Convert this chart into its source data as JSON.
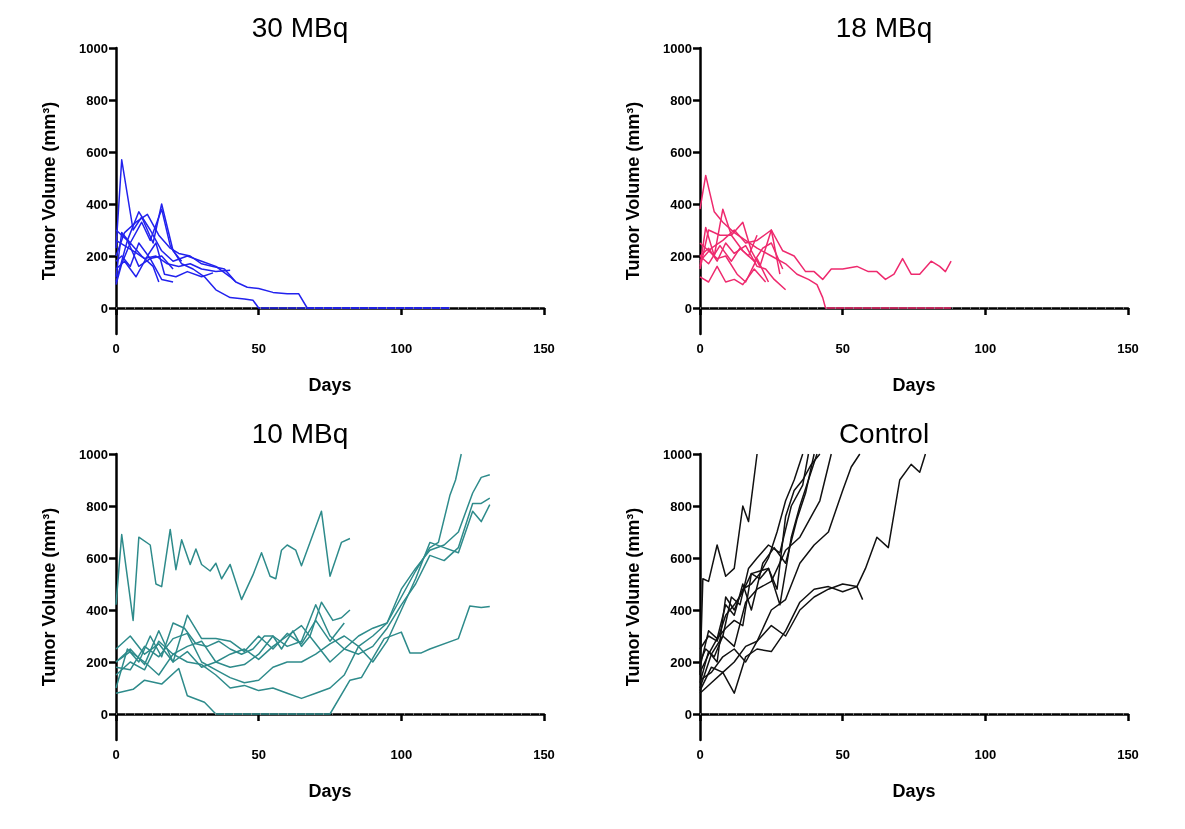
{
  "chart_data": [
    {
      "type": "line",
      "title": "30 MBq",
      "xlabel": "Days",
      "ylabel": "Tumor Volume (mm³)",
      "xlim": [
        0,
        150
      ],
      "xticks": [
        0,
        50,
        100,
        150
      ],
      "ylim": [
        -100,
        1000
      ],
      "yticks": [
        0,
        200,
        400,
        600,
        800,
        1000
      ],
      "grid": false,
      "marker": "none",
      "ref_lines": [
        {
          "axis": "y",
          "value": 0,
          "color": "#999999",
          "line_style": "dotted"
        }
      ],
      "series": [
        {
          "color": "#2222ee",
          "x": [
            0,
            2,
            6,
            9,
            13,
            16,
            20,
            23
          ],
          "values": [
            230,
            570,
            300,
            350,
            250,
            400,
            220,
            180
          ]
        },
        {
          "color": "#2222ee",
          "x": [
            0,
            2,
            5,
            9,
            12,
            16,
            19,
            23,
            27,
            31,
            35,
            40,
            45,
            48,
            50,
            117
          ],
          "values": [
            120,
            290,
            250,
            330,
            260,
            380,
            240,
            170,
            150,
            120,
            70,
            40,
            35,
            30,
            0,
            0
          ]
        },
        {
          "color": "#2222ee",
          "x": [
            0,
            3,
            7,
            11,
            15,
            19,
            22,
            26,
            30,
            34,
            38,
            42,
            46,
            50,
            55,
            60,
            64,
            67,
            117
          ],
          "values": [
            200,
            290,
            330,
            360,
            280,
            230,
            210,
            200,
            170,
            160,
            150,
            100,
            80,
            75,
            60,
            55,
            55,
            0,
            0
          ]
        },
        {
          "color": "#2222ee",
          "x": [
            0,
            4,
            8,
            12,
            16,
            20,
            25,
            30,
            35,
            40,
            42
          ],
          "values": [
            100,
            260,
            370,
            300,
            220,
            180,
            200,
            180,
            160,
            120,
            100
          ]
        },
        {
          "color": "#2222ee",
          "x": [
            0,
            3,
            7,
            11,
            14,
            17,
            21,
            25,
            30,
            34
          ],
          "values": [
            150,
            180,
            120,
            200,
            250,
            130,
            120,
            140,
            120,
            135
          ]
        },
        {
          "color": "#2222ee",
          "x": [
            0,
            2,
            5,
            9,
            13,
            15
          ],
          "values": [
            90,
            170,
            250,
            200,
            160,
            100
          ]
        },
        {
          "color": "#2222ee",
          "x": [
            0,
            3,
            6,
            10,
            14,
            18,
            22,
            26,
            30,
            35,
            40
          ],
          "values": [
            260,
            240,
            220,
            190,
            200,
            170,
            160,
            170,
            150,
            140,
            145
          ]
        },
        {
          "color": "#2222ee",
          "x": [
            0,
            2,
            5,
            8,
            12,
            16,
            20
          ],
          "values": [
            180,
            200,
            160,
            250,
            190,
            200,
            150
          ]
        },
        {
          "color": "#2222ee",
          "x": [
            0,
            4,
            8,
            12,
            16,
            20
          ],
          "values": [
            300,
            260,
            160,
            190,
            110,
            100
          ]
        }
      ]
    },
    {
      "type": "line",
      "title": "18 MBq",
      "xlabel": "Days",
      "ylabel": "Tumor Volume (mm³)",
      "xlim": [
        0,
        150
      ],
      "xticks": [
        0,
        50,
        100,
        150
      ],
      "ylim": [
        -100,
        1000
      ],
      "yticks": [
        0,
        200,
        400,
        600,
        800,
        1000
      ],
      "grid": false,
      "marker": "none",
      "ref_lines": [
        {
          "axis": "y",
          "value": 0,
          "color": "#999999",
          "line_style": "dotted"
        }
      ],
      "series": [
        {
          "color": "#ee2a6e",
          "x": [
            0,
            2,
            5,
            8,
            12,
            16,
            20,
            25,
            30,
            34,
            38,
            41,
            43,
            44,
            88
          ],
          "values": [
            380,
            510,
            370,
            330,
            290,
            260,
            230,
            200,
            170,
            130,
            110,
            90,
            40,
            0,
            0
          ]
        },
        {
          "color": "#ee2a6e",
          "x": [
            0,
            4,
            8,
            12,
            16,
            20,
            25,
            29,
            33,
            37,
            40,
            43,
            46,
            50,
            55,
            59,
            62,
            65,
            68,
            71,
            74,
            77,
            81,
            84,
            86,
            88
          ],
          "values": [
            180,
            230,
            260,
            300,
            250,
            260,
            300,
            220,
            200,
            140,
            140,
            110,
            150,
            150,
            160,
            140,
            140,
            110,
            130,
            190,
            130,
            130,
            180,
            160,
            140,
            180
          ]
        },
        {
          "color": "#ee2a6e",
          "x": [
            0,
            3,
            6,
            9,
            12,
            16,
            20,
            23,
            26,
            30
          ],
          "values": [
            200,
            230,
            180,
            250,
            210,
            240,
            160,
            150,
            110,
            70
          ]
        },
        {
          "color": "#ee2a6e",
          "x": [
            0,
            3,
            7,
            11,
            15,
            19,
            22,
            25,
            29
          ],
          "values": [
            150,
            300,
            280,
            280,
            220,
            180,
            230,
            250,
            150
          ]
        },
        {
          "color": "#ee2a6e",
          "x": [
            0,
            2,
            5,
            8,
            11,
            15,
            18,
            21,
            25,
            28
          ],
          "values": [
            160,
            310,
            200,
            380,
            280,
            330,
            220,
            160,
            300,
            130
          ]
        },
        {
          "color": "#ee2a6e",
          "x": [
            0,
            3,
            6,
            9,
            12,
            15,
            19,
            23
          ],
          "values": [
            120,
            100,
            160,
            100,
            110,
            90,
            150,
            100
          ]
        },
        {
          "color": "#ee2a6e",
          "x": [
            0,
            3,
            7,
            11,
            14,
            17,
            20
          ],
          "values": [
            200,
            170,
            240,
            180,
            230,
            200,
            280
          ]
        },
        {
          "color": "#ee2a6e",
          "x": [
            0,
            3,
            6,
            9,
            13,
            16,
            20,
            24
          ],
          "values": [
            250,
            220,
            190,
            200,
            130,
            100,
            190,
            100
          ]
        }
      ]
    },
    {
      "type": "line",
      "title": "10 MBq",
      "xlabel": "Days",
      "ylabel": "Tumor Volume (mm³)",
      "xlim": [
        0,
        150
      ],
      "xticks": [
        0,
        50,
        100,
        150
      ],
      "ylim": [
        -100,
        1000
      ],
      "yticks": [
        0,
        200,
        400,
        600,
        800,
        1000
      ],
      "grid": false,
      "marker": "none",
      "ref_lines": [
        {
          "axis": "y",
          "value": 0,
          "color": "#999999",
          "line_style": "dotted"
        }
      ],
      "series": [
        {
          "color": "#2e8b8b",
          "x": [
            0,
            2,
            6,
            8,
            12,
            14,
            16,
            19,
            21,
            23,
            26,
            28,
            30,
            33,
            35,
            37,
            40,
            44,
            48,
            51,
            54,
            56,
            58,
            60,
            63,
            65,
            72,
            75,
            79,
            82
          ],
          "values": [
            420,
            690,
            360,
            680,
            650,
            500,
            490,
            710,
            555,
            670,
            575,
            635,
            575,
            550,
            580,
            520,
            575,
            440,
            535,
            620,
            530,
            520,
            630,
            650,
            630,
            570,
            780,
            530,
            660,
            675
          ]
        },
        {
          "color": "#2e8b8b",
          "x": [
            0,
            6,
            10,
            16,
            22,
            25,
            31,
            35,
            75,
            82,
            86,
            94,
            100,
            103,
            107,
            110,
            120,
            124,
            128,
            131
          ],
          "values": [
            80,
            95,
            130,
            115,
            175,
            70,
            45,
            0,
            0,
            130,
            140,
            290,
            315,
            235,
            235,
            250,
            290,
            415,
            410,
            413
          ]
        },
        {
          "color": "#2e8b8b",
          "x": [
            0,
            5,
            10,
            15,
            20,
            25,
            30,
            35,
            40,
            45,
            50,
            55,
            60,
            65,
            70,
            75,
            80,
            85,
            90,
            95,
            100,
            105,
            110,
            113,
            117,
            119,
            121
          ],
          "values": [
            150,
            200,
            170,
            280,
            230,
            200,
            190,
            150,
            100,
            110,
            90,
            100,
            80,
            60,
            80,
            100,
            150,
            260,
            300,
            350,
            450,
            550,
            640,
            660,
            840,
            900,
            1000
          ]
        },
        {
          "color": "#2e8b8b",
          "x": [
            0,
            5,
            10,
            15,
            20,
            25,
            30,
            35,
            40,
            45,
            50,
            55,
            60,
            65,
            70,
            75,
            80,
            85,
            90,
            95,
            100,
            105,
            110,
            115,
            120,
            125,
            128,
            131
          ],
          "values": [
            250,
            300,
            230,
            270,
            200,
            240,
            180,
            200,
            230,
            250,
            210,
            260,
            300,
            340,
            270,
            200,
            250,
            300,
            330,
            350,
            480,
            560,
            630,
            650,
            700,
            850,
            910,
            920
          ]
        },
        {
          "color": "#2e8b8b",
          "x": [
            0,
            5,
            10,
            15,
            20,
            25,
            30,
            35,
            40,
            45,
            50,
            55,
            60,
            65,
            70,
            75,
            80,
            85,
            90,
            95,
            100,
            105,
            110,
            115,
            120,
            125,
            128,
            131
          ],
          "values": [
            200,
            240,
            200,
            150,
            230,
            260,
            280,
            200,
            180,
            190,
            230,
            300,
            260,
            280,
            420,
            300,
            250,
            230,
            260,
            330,
            420,
            500,
            610,
            590,
            640,
            810,
            810,
            830
          ]
        },
        {
          "color": "#2e8b8b",
          "x": [
            0,
            5,
            10,
            15,
            20,
            25,
            30,
            35,
            40,
            45,
            50,
            55,
            60,
            65,
            70,
            75,
            80,
            85,
            90,
            95,
            100,
            105,
            110,
            115,
            120,
            125,
            128,
            131
          ],
          "values": [
            180,
            170,
            260,
            220,
            290,
            310,
            200,
            170,
            140,
            120,
            130,
            180,
            200,
            200,
            230,
            270,
            300,
            260,
            200,
            280,
            400,
            520,
            660,
            640,
            620,
            780,
            740,
            805
          ]
        },
        {
          "color": "#2e8b8b",
          "x": [
            0,
            4,
            8,
            12,
            16,
            20,
            24,
            28,
            32,
            36,
            40,
            44,
            48,
            52,
            55,
            58,
            62,
            65,
            68,
            72,
            76,
            79,
            82
          ],
          "values": [
            100,
            250,
            200,
            300,
            220,
            350,
            330,
            270,
            260,
            280,
            250,
            230,
            250,
            300,
            300,
            250,
            320,
            260,
            300,
            430,
            360,
            370,
            400
          ]
        },
        {
          "color": "#2e8b8b",
          "x": [
            0,
            5,
            10,
            15,
            20,
            25,
            30,
            35,
            40,
            45,
            50,
            55,
            60,
            65,
            70,
            75,
            80
          ],
          "values": [
            200,
            250,
            190,
            320,
            200,
            380,
            290,
            290,
            280,
            240,
            300,
            250,
            310,
            270,
            360,
            280,
            350
          ]
        }
      ]
    },
    {
      "type": "line",
      "title": "Control",
      "xlabel": "Days",
      "ylabel": "Tumor Volume (mm³)",
      "xlim": [
        0,
        150
      ],
      "xticks": [
        0,
        50,
        100,
        150
      ],
      "ylim": [
        -100,
        1000
      ],
      "yticks": [
        0,
        200,
        400,
        600,
        800,
        1000
      ],
      "grid": false,
      "marker": "none",
      "ref_lines": [
        {
          "axis": "y",
          "value": 0,
          "color": "#999999",
          "line_style": "dotted"
        }
      ],
      "series": [
        {
          "color": "#111111",
          "x": [
            0,
            1,
            3,
            6,
            9,
            12,
            15,
            17,
            20
          ],
          "values": [
            150,
            520,
            510,
            650,
            530,
            560,
            800,
            740,
            1000
          ]
        },
        {
          "color": "#111111",
          "x": [
            0,
            3,
            6,
            9,
            12,
            15,
            18,
            21,
            24,
            27,
            30,
            33,
            36
          ],
          "values": [
            120,
            240,
            200,
            450,
            400,
            480,
            500,
            540,
            600,
            700,
            820,
            900,
            1000
          ]
        },
        {
          "color": "#111111",
          "x": [
            0,
            2,
            5,
            8,
            11,
            14,
            17,
            20,
            24,
            28,
            32,
            36,
            38
          ],
          "values": [
            200,
            250,
            220,
            300,
            450,
            420,
            560,
            600,
            650,
            620,
            800,
            880,
            1000
          ]
        },
        {
          "color": "#111111",
          "x": [
            0,
            3,
            6,
            9,
            12,
            15,
            18,
            22,
            26,
            30,
            34,
            37,
            40
          ],
          "values": [
            180,
            320,
            290,
            420,
            380,
            500,
            400,
            580,
            640,
            580,
            750,
            850,
            1000
          ]
        },
        {
          "color": "#111111",
          "x": [
            0,
            4,
            8,
            12,
            16,
            20,
            25,
            30,
            35,
            40,
            42,
            46
          ],
          "values": [
            100,
            230,
            300,
            260,
            430,
            480,
            510,
            630,
            680,
            780,
            820,
            1000
          ]
        },
        {
          "color": "#111111",
          "x": [
            0,
            4,
            8,
            12,
            16,
            20,
            25,
            30,
            35,
            40,
            45,
            50,
            53,
            56
          ],
          "values": [
            90,
            180,
            160,
            200,
            260,
            280,
            400,
            440,
            580,
            650,
            700,
            860,
            950,
            1000
          ]
        },
        {
          "color": "#111111",
          "x": [
            0,
            4,
            8,
            12,
            16,
            20,
            25,
            30,
            35,
            40,
            45,
            50,
            55,
            58,
            62,
            66,
            70,
            74,
            77,
            79
          ],
          "values": [
            130,
            160,
            220,
            250,
            200,
            280,
            340,
            300,
            400,
            450,
            480,
            500,
            490,
            560,
            680,
            640,
            900,
            960,
            930,
            1000
          ]
        },
        {
          "color": "#111111",
          "x": [
            0,
            4,
            8,
            12,
            16,
            20,
            25,
            30,
            35,
            40,
            45,
            50,
            55,
            57
          ],
          "values": [
            80,
            120,
            160,
            80,
            220,
            250,
            240,
            320,
            430,
            480,
            490,
            470,
            490,
            440
          ]
        },
        {
          "color": "#111111",
          "x": [
            0,
            3,
            6,
            9,
            12,
            15,
            18,
            21,
            24,
            27,
            30,
            33,
            36,
            39,
            42
          ],
          "values": [
            250,
            300,
            280,
            380,
            420,
            470,
            540,
            550,
            560,
            480,
            760,
            860,
            900,
            960,
            1000
          ]
        },
        {
          "color": "#111111",
          "x": [
            0,
            3,
            6,
            9,
            12,
            15,
            18,
            21,
            24,
            28,
            32,
            35,
            38,
            41
          ],
          "values": [
            160,
            230,
            290,
            330,
            360,
            340,
            540,
            520,
            560,
            420,
            680,
            800,
            900,
            1000
          ]
        }
      ]
    }
  ]
}
